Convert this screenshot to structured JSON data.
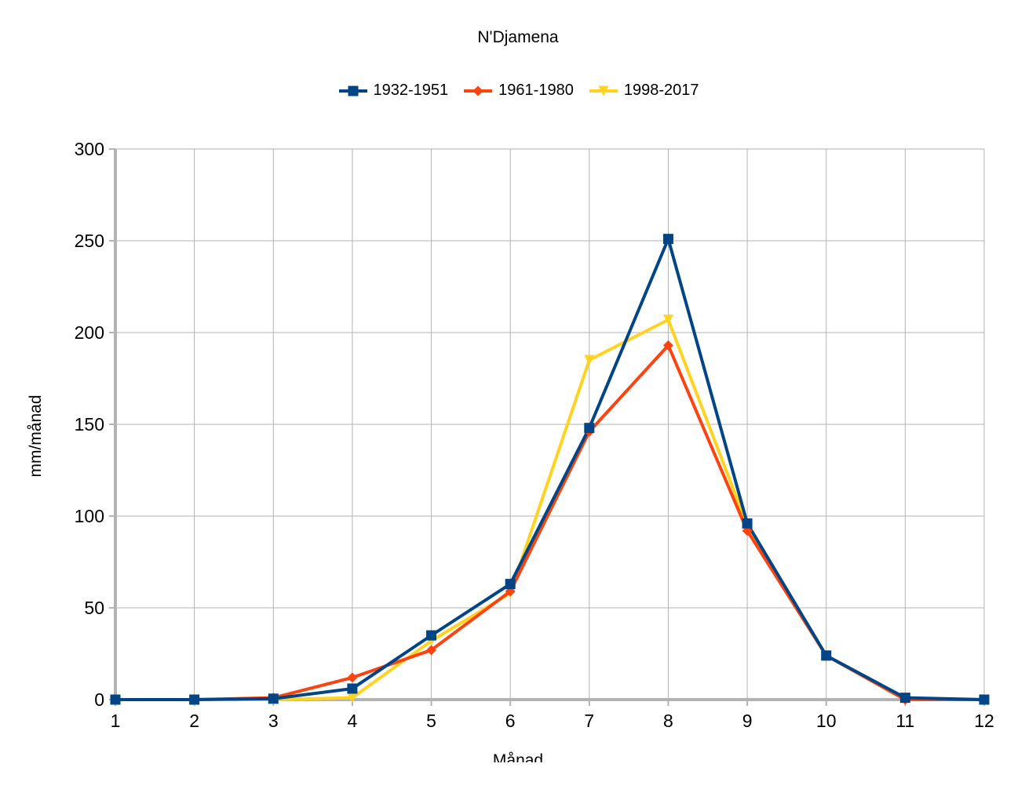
{
  "chart_data": {
    "type": "line",
    "title": "N'Djamena",
    "xlabel": "Månad",
    "ylabel": "mm/månad",
    "x": [
      1,
      2,
      3,
      4,
      5,
      6,
      7,
      8,
      9,
      10,
      11,
      12
    ],
    "xlim": [
      1,
      12
    ],
    "ylim": [
      0,
      300
    ],
    "yticks": [
      0,
      50,
      100,
      150,
      200,
      250,
      300
    ],
    "grid": true,
    "legend_position": "top",
    "series": [
      {
        "name": "1932-1951",
        "color": "#004586",
        "marker": "square",
        "values": [
          0,
          0,
          0.5,
          6,
          35,
          63,
          148,
          251,
          96,
          24,
          1,
          0
        ]
      },
      {
        "name": "1961-1980",
        "color": "#ff420e",
        "marker": "diamond",
        "values": [
          0,
          0,
          1,
          12,
          27,
          59,
          146,
          193,
          92,
          24,
          0,
          0
        ]
      },
      {
        "name": "1998-2017",
        "color": "#ffd320",
        "marker": "triangle-down",
        "values": [
          0,
          0,
          0,
          1,
          32,
          58,
          185,
          207,
          95,
          24,
          0.5,
          0
        ]
      }
    ]
  }
}
